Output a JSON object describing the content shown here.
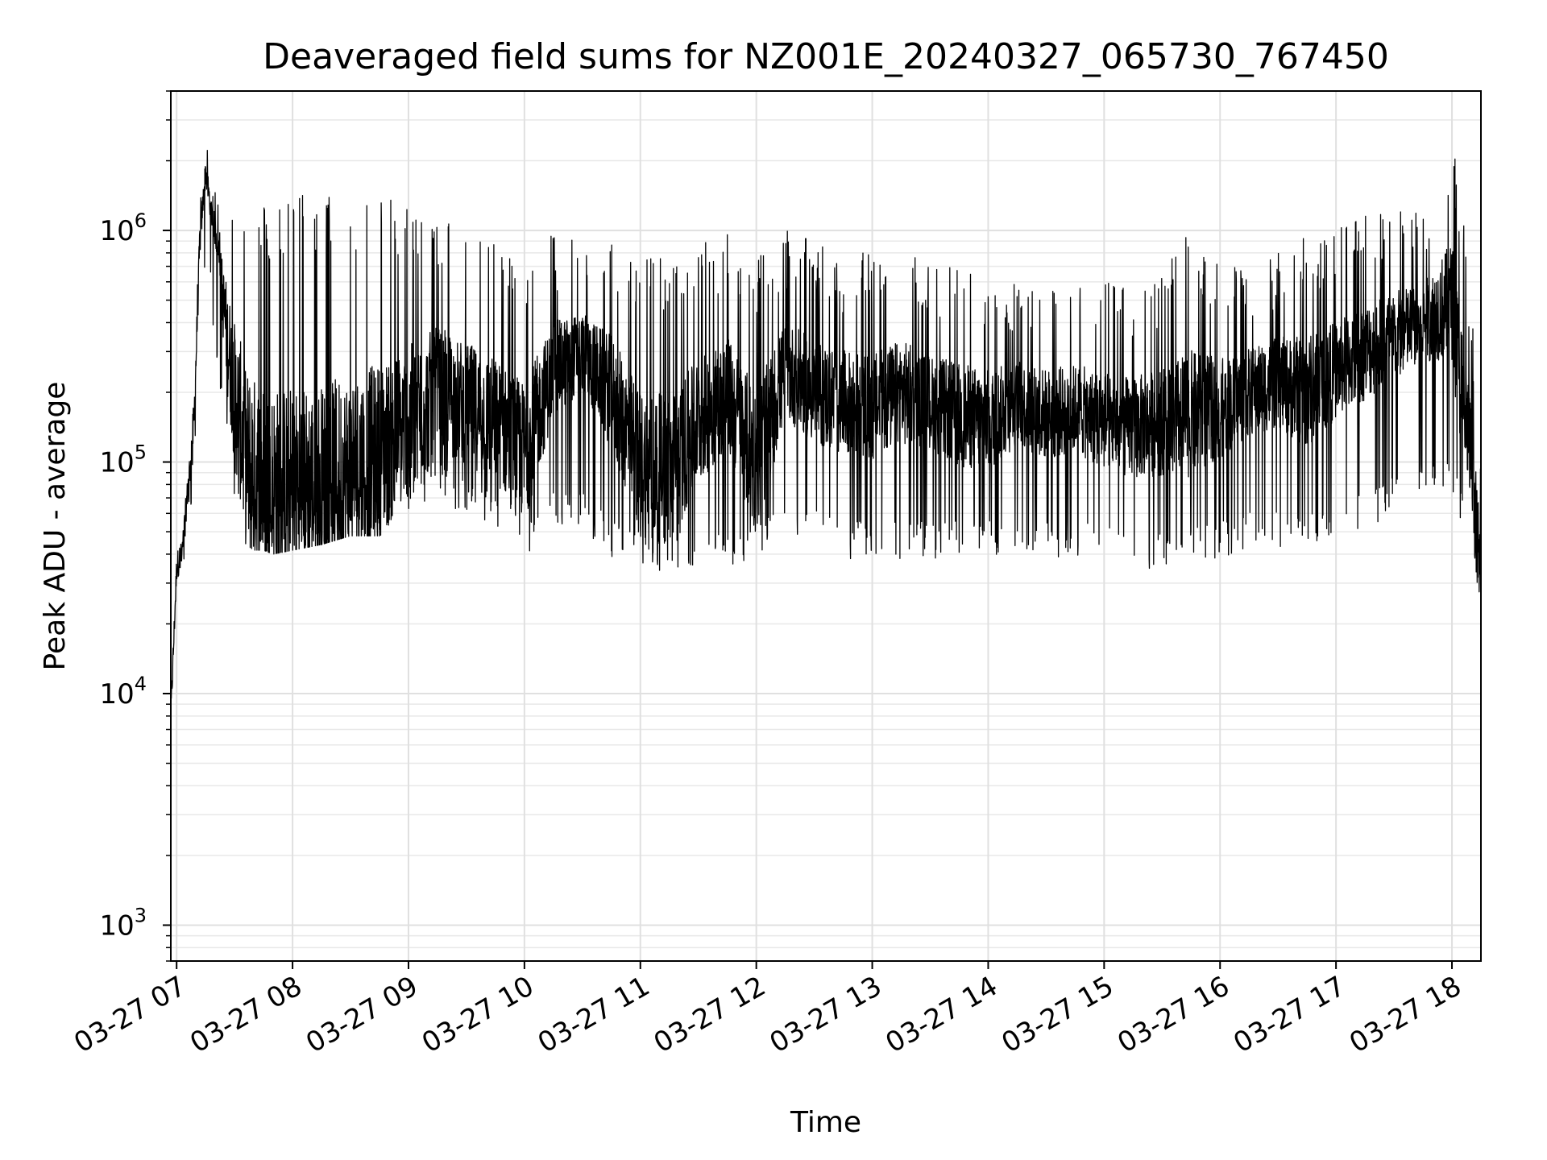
{
  "chart_data": {
    "type": "line",
    "title": "Deaveraged field sums for NZ001E_20240327_065730_767450",
    "xlabel": "Time",
    "ylabel": "Peak ADU - average",
    "yscale": "log",
    "ylim": [
      700,
      4000000
    ],
    "xlim": [
      "2024-03-27 06:57",
      "2024-03-27 18:15"
    ],
    "x_ticks": [
      {
        "t": "2024-03-27 07:00",
        "label": "03-27 07"
      },
      {
        "t": "2024-03-27 08:00",
        "label": "03-27 08"
      },
      {
        "t": "2024-03-27 09:00",
        "label": "03-27 09"
      },
      {
        "t": "2024-03-27 10:00",
        "label": "03-27 10"
      },
      {
        "t": "2024-03-27 11:00",
        "label": "03-27 11"
      },
      {
        "t": "2024-03-27 12:00",
        "label": "03-27 12"
      },
      {
        "t": "2024-03-27 13:00",
        "label": "03-27 13"
      },
      {
        "t": "2024-03-27 14:00",
        "label": "03-27 14"
      },
      {
        "t": "2024-03-27 15:00",
        "label": "03-27 15"
      },
      {
        "t": "2024-03-27 16:00",
        "label": "03-27 16"
      },
      {
        "t": "2024-03-27 17:00",
        "label": "03-27 17"
      },
      {
        "t": "2024-03-27 18:00",
        "label": "03-27 18"
      }
    ],
    "y_ticks": [
      {
        "value": 1000,
        "base": "10",
        "exp": "3"
      },
      {
        "value": 10000,
        "base": "10",
        "exp": "4"
      },
      {
        "value": 100000,
        "base": "10",
        "exp": "5"
      },
      {
        "value": 1000000,
        "base": "10",
        "exp": "6"
      }
    ],
    "grid": true,
    "line_color": "#000000",
    "series": [
      {
        "x": [
          "2024-03-27 06:57",
          "2024-03-27 07:00",
          "2024-03-27 07:03",
          "2024-03-27 07:06",
          "2024-03-27 07:09",
          "2024-03-27 07:12",
          "2024-03-27 07:15",
          "2024-03-27 07:18",
          "2024-03-27 07:21",
          "2024-03-27 07:24",
          "2024-03-27 07:27",
          "2024-03-27 07:30",
          "2024-03-27 07:33",
          "2024-03-27 07:36",
          "2024-03-27 07:40",
          "2024-03-27 07:45",
          "2024-03-27 07:50",
          "2024-03-27 08:00",
          "2024-03-27 08:15",
          "2024-03-27 08:30",
          "2024-03-27 08:45",
          "2024-03-27 09:00",
          "2024-03-27 09:15",
          "2024-03-27 09:30",
          "2024-03-27 09:45",
          "2024-03-27 10:00",
          "2024-03-27 10:15",
          "2024-03-27 10:30",
          "2024-03-27 10:45",
          "2024-03-27 11:00",
          "2024-03-27 11:15",
          "2024-03-27 11:30",
          "2024-03-27 11:45",
          "2024-03-27 12:00",
          "2024-03-27 12:15",
          "2024-03-27 12:30",
          "2024-03-27 12:45",
          "2024-03-27 13:00",
          "2024-03-27 13:15",
          "2024-03-27 13:30",
          "2024-03-27 13:45",
          "2024-03-27 14:00",
          "2024-03-27 14:15",
          "2024-03-27 14:30",
          "2024-03-27 14:45",
          "2024-03-27 15:00",
          "2024-03-27 15:15",
          "2024-03-27 15:30",
          "2024-03-27 15:45",
          "2024-03-27 16:00",
          "2024-03-27 16:15",
          "2024-03-27 16:30",
          "2024-03-27 16:45",
          "2024-03-27 17:00",
          "2024-03-27 17:15",
          "2024-03-27 17:30",
          "2024-03-27 17:45",
          "2024-03-27 18:00",
          "2024-03-27 18:05",
          "2024-03-27 18:10",
          "2024-03-27 18:15"
        ],
        "y": [
          8000,
          35000,
          42000,
          80000,
          150000,
          900000,
          1800000,
          1200000,
          900000,
          500000,
          300000,
          200000,
          150000,
          100000,
          90000,
          85000,
          80000,
          75000,
          80000,
          90000,
          110000,
          150000,
          200000,
          180000,
          150000,
          110000,
          250000,
          300000,
          200000,
          100000,
          90000,
          150000,
          200000,
          100000,
          250000,
          200000,
          180000,
          170000,
          200000,
          180000,
          160000,
          150000,
          180000,
          160000,
          170000,
          150000,
          140000,
          150000,
          160000,
          170000,
          200000,
          220000,
          200000,
          250000,
          300000,
          350000,
          400000,
          500000,
          200000,
          100000,
          30000
        ],
        "envelope_low": [
          8000,
          30000,
          35000,
          60000,
          90000,
          400000,
          800000,
          500000,
          300000,
          200000,
          100000,
          80000,
          60000,
          55000,
          52000,
          52000,
          50000,
          52000,
          55000,
          60000,
          60000,
          70000,
          80000,
          70000,
          60000,
          45000,
          60000,
          60000,
          45000,
          40000,
          40000,
          40000,
          40000,
          45000,
          50000,
          50000,
          45000,
          45000,
          45000,
          45000,
          45000,
          45000,
          45000,
          45000,
          45000,
          45000,
          40000,
          40000,
          45000,
          45000,
          50000,
          50000,
          50000,
          55000,
          60000,
          70000,
          80000,
          90000,
          60000,
          40000,
          28000
        ],
        "envelope_high": [
          10000,
          42000,
          45000,
          110000,
          300000,
          1500000,
          2500000,
          1700000,
          1500000,
          1400000,
          1600000,
          1500000,
          1500000,
          1400000,
          1400000,
          1300000,
          1300000,
          1500000,
          1400000,
          1500000,
          1400000,
          1300000,
          1300000,
          1000000,
          900000,
          800000,
          1000000,
          900000,
          1000000,
          800000,
          800000,
          900000,
          1000000,
          800000,
          1000000,
          900000,
          800000,
          800000,
          900000,
          700000,
          700000,
          650000,
          600000,
          600000,
          600000,
          600000,
          600000,
          700000,
          1000000,
          700000,
          700000,
          800000,
          1000000,
          1000000,
          1200000,
          1300000,
          1200000,
          2700000,
          1500000,
          500000,
          100000
        ]
      }
    ]
  }
}
